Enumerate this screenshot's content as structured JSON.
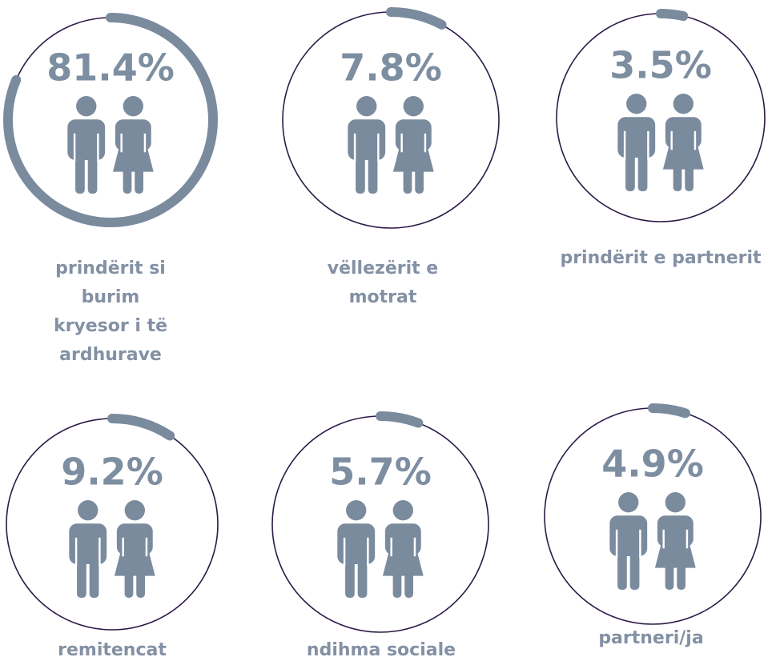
{
  "chart_data": {
    "type": "ring",
    "categories": [
      "prindërit si burim kryesor i të ardhurave",
      "vëllezërit e motrat",
      "prindërit e partnerit",
      "remitencat",
      "ndihma sociale",
      "partneri/ja"
    ],
    "values": [
      81.4,
      7.8,
      3.5,
      9.2,
      5.7,
      4.9
    ],
    "value_labels": [
      "81.4%",
      "7.8%",
      "3.5%",
      "9.2%",
      "5.7%",
      "4.9%"
    ],
    "ylim": [
      0,
      100
    ],
    "color": "#7b8b9e",
    "outline_color": "#2e1a47"
  }
}
